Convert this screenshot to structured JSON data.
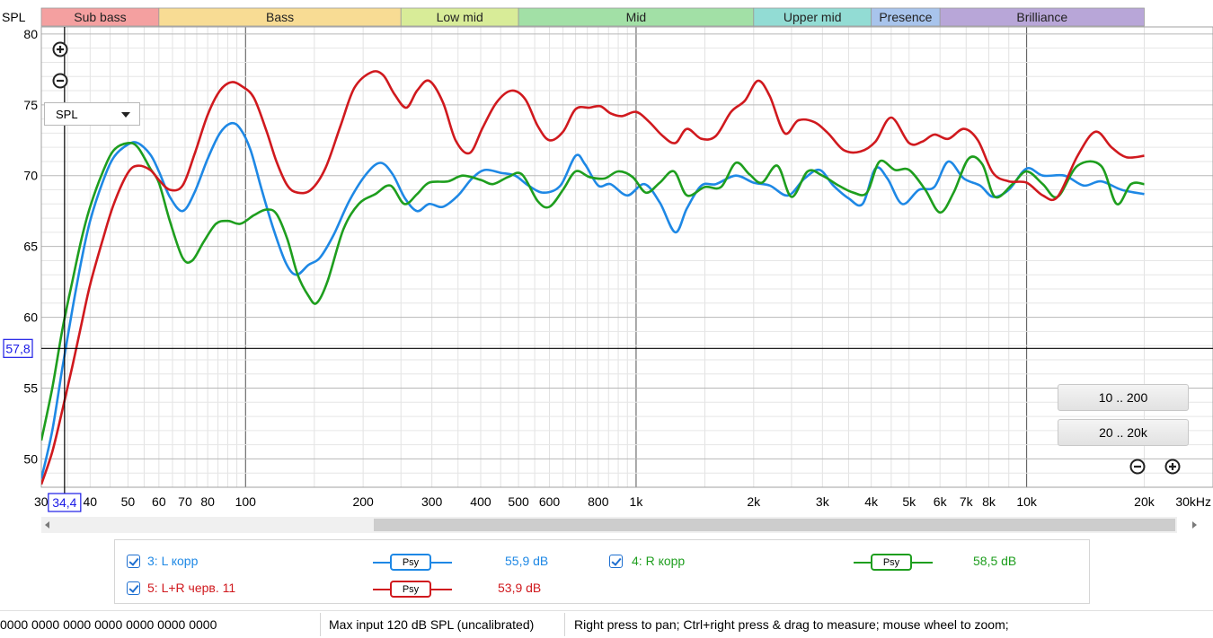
{
  "chart_data": {
    "type": "line",
    "title": "",
    "ylabel": "SPL",
    "xlabel": "",
    "x_scale": "log",
    "x_unit": "Hz",
    "xlim": [
      30,
      30000
    ],
    "ylim": [
      48,
      80.5
    ],
    "x_ticks": [
      {
        "v": 30,
        "t": "30"
      },
      {
        "v": 40,
        "t": "40"
      },
      {
        "v": 50,
        "t": "50"
      },
      {
        "v": 60,
        "t": "60"
      },
      {
        "v": 70,
        "t": "70"
      },
      {
        "v": 80,
        "t": "80"
      },
      {
        "v": 100,
        "t": "100"
      },
      {
        "v": 200,
        "t": "200"
      },
      {
        "v": 300,
        "t": "300"
      },
      {
        "v": 400,
        "t": "400"
      },
      {
        "v": 500,
        "t": "500"
      },
      {
        "v": 600,
        "t": "600"
      },
      {
        "v": 800,
        "t": "800"
      },
      {
        "v": 1000,
        "t": "1k"
      },
      {
        "v": 2000,
        "t": "2k"
      },
      {
        "v": 3000,
        "t": "3k"
      },
      {
        "v": 4000,
        "t": "4k"
      },
      {
        "v": 5000,
        "t": "5k"
      },
      {
        "v": 6000,
        "t": "6k"
      },
      {
        "v": 7000,
        "t": "7k"
      },
      {
        "v": 8000,
        "t": "8k"
      },
      {
        "v": 10000,
        "t": "10k"
      },
      {
        "v": 20000,
        "t": "20k"
      },
      {
        "v": 30000,
        "t": "30kHz"
      }
    ],
    "y_ticks": [
      50,
      55,
      60,
      65,
      70,
      75,
      80
    ],
    "cursor": {
      "x": 34.4,
      "x_label": "34,4",
      "y": 57.8,
      "y_label": "57,8"
    },
    "bands": [
      {
        "name": "Sub bass",
        "from": 30,
        "to": 60,
        "color": "#f4a0a0"
      },
      {
        "name": "Bass",
        "from": 60,
        "to": 250,
        "color": "#f8dc94"
      },
      {
        "name": "Low mid",
        "from": 250,
        "to": 500,
        "color": "#d8ec98"
      },
      {
        "name": "Mid",
        "from": 500,
        "to": 2000,
        "color": "#a2e0a6"
      },
      {
        "name": "Upper mid",
        "from": 2000,
        "to": 4000,
        "color": "#92dcd4"
      },
      {
        "name": "Presence",
        "from": 4000,
        "to": 6000,
        "color": "#a8c4ec"
      },
      {
        "name": "Brilliance",
        "from": 6000,
        "to": 20000,
        "color": "#b8a6d8"
      }
    ],
    "series": [
      {
        "name": "3: L корр",
        "color": "#1e88e5",
        "points": [
          [
            30,
            48.6
          ],
          [
            32,
            52
          ],
          [
            34,
            56.5
          ],
          [
            36,
            60.5
          ],
          [
            38,
            64
          ],
          [
            40,
            66.8
          ],
          [
            43,
            69.5
          ],
          [
            46,
            71.3
          ],
          [
            50,
            72.2
          ],
          [
            53,
            72.3
          ],
          [
            57,
            71.5
          ],
          [
            60,
            70.3
          ],
          [
            64,
            68.5
          ],
          [
            69,
            67.5
          ],
          [
            74,
            68.8
          ],
          [
            80,
            71.2
          ],
          [
            86,
            73
          ],
          [
            92,
            73.7
          ],
          [
            97,
            73.3
          ],
          [
            103,
            71.8
          ],
          [
            110,
            69
          ],
          [
            118,
            66.2
          ],
          [
            127,
            63.8
          ],
          [
            135,
            63
          ],
          [
            145,
            63.7
          ],
          [
            155,
            64.2
          ],
          [
            168,
            65.8
          ],
          [
            185,
            68.3
          ],
          [
            205,
            70.2
          ],
          [
            222,
            70.9
          ],
          [
            238,
            70.1
          ],
          [
            256,
            68.4
          ],
          [
            275,
            67.5
          ],
          [
            295,
            68
          ],
          [
            320,
            67.8
          ],
          [
            350,
            68.6
          ],
          [
            380,
            69.8
          ],
          [
            410,
            70.4
          ],
          [
            450,
            70.2
          ],
          [
            490,
            70
          ],
          [
            530,
            69.3
          ],
          [
            580,
            68.8
          ],
          [
            640,
            69.3
          ],
          [
            700,
            71.4
          ],
          [
            740,
            70.8
          ],
          [
            800,
            69.3
          ],
          [
            860,
            69.4
          ],
          [
            950,
            68.6
          ],
          [
            1050,
            69.4
          ],
          [
            1150,
            68.1
          ],
          [
            1260,
            66
          ],
          [
            1350,
            67.7
          ],
          [
            1470,
            69.3
          ],
          [
            1600,
            69.4
          ],
          [
            1800,
            70
          ],
          [
            2000,
            69.5
          ],
          [
            2200,
            69.3
          ],
          [
            2450,
            68.6
          ],
          [
            2700,
            69.8
          ],
          [
            2950,
            70.4
          ],
          [
            3200,
            69.3
          ],
          [
            3500,
            68.4
          ],
          [
            3800,
            68
          ],
          [
            4100,
            70.5
          ],
          [
            4400,
            69.8
          ],
          [
            4800,
            68
          ],
          [
            5300,
            69
          ],
          [
            5800,
            69.2
          ],
          [
            6300,
            71
          ],
          [
            6900,
            69.8
          ],
          [
            7600,
            69.3
          ],
          [
            8200,
            68.5
          ],
          [
            9000,
            69
          ],
          [
            10000,
            70.5
          ],
          [
            11000,
            70
          ],
          [
            12500,
            70
          ],
          [
            14000,
            69.3
          ],
          [
            15500,
            69.6
          ],
          [
            17500,
            69
          ],
          [
            20000,
            68.7
          ]
        ]
      },
      {
        "name": "4: R корр",
        "color": "#1e9e1e",
        "points": [
          [
            30,
            51.3
          ],
          [
            32,
            55
          ],
          [
            34,
            59.2
          ],
          [
            36,
            62.5
          ],
          [
            38,
            65.5
          ],
          [
            40,
            67.8
          ],
          [
            43,
            70.2
          ],
          [
            46,
            71.8
          ],
          [
            50,
            72.3
          ],
          [
            53,
            72
          ],
          [
            57,
            70.5
          ],
          [
            60,
            69.5
          ],
          [
            64,
            66.8
          ],
          [
            69,
            64.2
          ],
          [
            73,
            64
          ],
          [
            78,
            65.3
          ],
          [
            84,
            66.6
          ],
          [
            90,
            66.8
          ],
          [
            97,
            66.6
          ],
          [
            105,
            67.2
          ],
          [
            113,
            67.6
          ],
          [
            120,
            67.3
          ],
          [
            128,
            65.5
          ],
          [
            136,
            63
          ],
          [
            145,
            61.5
          ],
          [
            152,
            61
          ],
          [
            162,
            62.5
          ],
          [
            178,
            66.2
          ],
          [
            195,
            68
          ],
          [
            215,
            68.7
          ],
          [
            235,
            69.3
          ],
          [
            255,
            68
          ],
          [
            275,
            68.7
          ],
          [
            295,
            69.5
          ],
          [
            330,
            69.6
          ],
          [
            360,
            70
          ],
          [
            400,
            69.7
          ],
          [
            430,
            69.4
          ],
          [
            470,
            69.9
          ],
          [
            510,
            70.1
          ],
          [
            560,
            68.2
          ],
          [
            600,
            67.8
          ],
          [
            650,
            69
          ],
          [
            700,
            70.3
          ],
          [
            760,
            69.9
          ],
          [
            830,
            69.8
          ],
          [
            900,
            70.3
          ],
          [
            980,
            69.9
          ],
          [
            1060,
            68.8
          ],
          [
            1150,
            69.5
          ],
          [
            1250,
            70.3
          ],
          [
            1350,
            68.6
          ],
          [
            1500,
            69.2
          ],
          [
            1650,
            69.2
          ],
          [
            1800,
            70.9
          ],
          [
            1950,
            70.1
          ],
          [
            2100,
            69.5
          ],
          [
            2300,
            70.7
          ],
          [
            2500,
            68.5
          ],
          [
            2750,
            70.3
          ],
          [
            3000,
            70
          ],
          [
            3300,
            69.3
          ],
          [
            3600,
            68.8
          ],
          [
            3900,
            68.8
          ],
          [
            4200,
            71
          ],
          [
            4600,
            70.4
          ],
          [
            5000,
            70.4
          ],
          [
            5500,
            69
          ],
          [
            6000,
            67.4
          ],
          [
            6500,
            68.8
          ],
          [
            7100,
            71.2
          ],
          [
            7700,
            70.8
          ],
          [
            8300,
            68.5
          ],
          [
            9200,
            69.4
          ],
          [
            10000,
            70.3
          ],
          [
            11000,
            69.4
          ],
          [
            12000,
            68.5
          ],
          [
            13500,
            70.7
          ],
          [
            15500,
            70.7
          ],
          [
            17000,
            68
          ],
          [
            18500,
            69.4
          ],
          [
            20000,
            69.4
          ]
        ]
      },
      {
        "name": "5: L+R черв. 11",
        "color": "#d0191e",
        "points": [
          [
            30,
            48.2
          ],
          [
            32,
            50.5
          ],
          [
            34,
            53.5
          ],
          [
            36,
            56.5
          ],
          [
            38,
            59.5
          ],
          [
            40,
            62.3
          ],
          [
            43,
            65.4
          ],
          [
            46,
            68
          ],
          [
            50,
            70.2
          ],
          [
            53,
            70.7
          ],
          [
            57,
            70.4
          ],
          [
            60,
            69.7
          ],
          [
            64,
            69
          ],
          [
            69,
            69.3
          ],
          [
            74,
            71.5
          ],
          [
            80,
            74.3
          ],
          [
            86,
            76
          ],
          [
            92,
            76.6
          ],
          [
            98,
            76.3
          ],
          [
            105,
            75.5
          ],
          [
            113,
            73.2
          ],
          [
            120,
            71
          ],
          [
            128,
            69.3
          ],
          [
            136,
            68.8
          ],
          [
            147,
            69
          ],
          [
            160,
            70.5
          ],
          [
            175,
            73.5
          ],
          [
            190,
            76.2
          ],
          [
            210,
            77.3
          ],
          [
            225,
            77.1
          ],
          [
            240,
            75.8
          ],
          [
            258,
            74.8
          ],
          [
            275,
            76
          ],
          [
            295,
            76.7
          ],
          [
            320,
            75.2
          ],
          [
            345,
            72.5
          ],
          [
            375,
            71.6
          ],
          [
            405,
            73.4
          ],
          [
            440,
            75.2
          ],
          [
            480,
            76
          ],
          [
            520,
            75.4
          ],
          [
            560,
            73.5
          ],
          [
            600,
            72.5
          ],
          [
            650,
            73.1
          ],
          [
            700,
            74.7
          ],
          [
            760,
            74.8
          ],
          [
            810,
            74.9
          ],
          [
            860,
            74.4
          ],
          [
            920,
            74.2
          ],
          [
            1000,
            74.5
          ],
          [
            1080,
            73.8
          ],
          [
            1170,
            72.8
          ],
          [
            1260,
            72.3
          ],
          [
            1350,
            73.3
          ],
          [
            1470,
            72.6
          ],
          [
            1600,
            72.8
          ],
          [
            1750,
            74.5
          ],
          [
            1900,
            75.3
          ],
          [
            2050,
            76.7
          ],
          [
            2200,
            75.6
          ],
          [
            2400,
            73
          ],
          [
            2600,
            73.9
          ],
          [
            2850,
            73.8
          ],
          [
            3100,
            73
          ],
          [
            3400,
            71.8
          ],
          [
            3750,
            71.7
          ],
          [
            4100,
            72.4
          ],
          [
            4500,
            74.1
          ],
          [
            5000,
            72.3
          ],
          [
            5400,
            72.4
          ],
          [
            5800,
            72.9
          ],
          [
            6300,
            72.6
          ],
          [
            6900,
            73.3
          ],
          [
            7500,
            72.5
          ],
          [
            8200,
            70.2
          ],
          [
            9000,
            69.6
          ],
          [
            10000,
            69.5
          ],
          [
            11000,
            68.6
          ],
          [
            12000,
            68.5
          ],
          [
            13500,
            71.4
          ],
          [
            15000,
            73.1
          ],
          [
            16500,
            72
          ],
          [
            18000,
            71.3
          ],
          [
            20000,
            71.4
          ]
        ]
      }
    ]
  },
  "controls": {
    "mode_select": "SPL",
    "range_btn_1": "10 .. 200",
    "range_btn_2": "20 .. 20k"
  },
  "legend": {
    "items": [
      {
        "label": "3: L корр",
        "value": "55,9 dB",
        "color": "#1e88e5",
        "psy": "Psy"
      },
      {
        "label": "4: R корр",
        "value": "58,5 dB",
        "color": "#1e9e1e",
        "psy": "Psy"
      },
      {
        "label": "5: L+R черв. 11",
        "value": "53,9 dB",
        "color": "#d0191e",
        "psy": "Psy"
      }
    ]
  },
  "status": {
    "levels": "0000  0000 0000  0000 0000  0000 0000",
    "max_input": "Max input 120 dB SPL (uncalibrated)",
    "hint": "Right press to pan; Ctrl+right press & drag to measure; mouse wheel to zoom;"
  }
}
